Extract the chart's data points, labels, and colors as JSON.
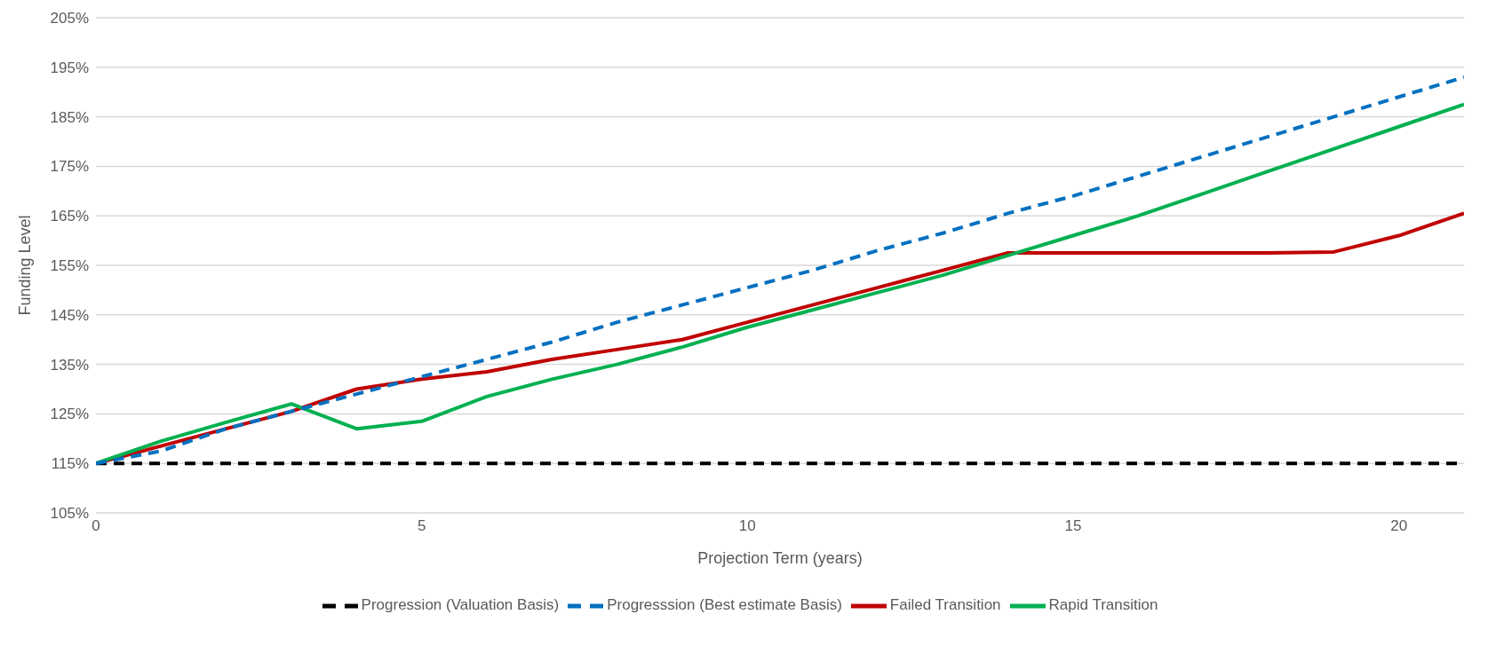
{
  "chart_data": {
    "type": "line",
    "xlabel": "Projection Term (years)",
    "ylabel": "Funding Level",
    "x": [
      0,
      1,
      2,
      3,
      4,
      5,
      6,
      7,
      8,
      9,
      10,
      11,
      12,
      13,
      14,
      15,
      16,
      17,
      18,
      19,
      20,
      21
    ],
    "xlim": [
      0,
      21
    ],
    "xticks": [
      0,
      5,
      10,
      15,
      20
    ],
    "ylim": [
      105,
      205
    ],
    "yticks": [
      {
        "value": 105,
        "label": "105%"
      },
      {
        "value": 115,
        "label": "115%"
      },
      {
        "value": 125,
        "label": "125%"
      },
      {
        "value": 135,
        "label": "135%"
      },
      {
        "value": 145,
        "label": "145%"
      },
      {
        "value": 155,
        "label": "155%"
      },
      {
        "value": 165,
        "label": "165%"
      },
      {
        "value": 175,
        "label": "175%"
      },
      {
        "value": 185,
        "label": "185%"
      },
      {
        "value": 195,
        "label": "195%"
      },
      {
        "value": 205,
        "label": "205%"
      }
    ],
    "grid": "y",
    "legend": "bottom",
    "marker": "none",
    "series": [
      {
        "name": "Progression (Valuation Basis)",
        "color": "#000000",
        "line_style": "dashed",
        "values": [
          115,
          115,
          115,
          115,
          115,
          115,
          115,
          115,
          115,
          115,
          115,
          115,
          115,
          115,
          115,
          115,
          115,
          115,
          115,
          115,
          115,
          115
        ]
      },
      {
        "name": "Progresssion (Best estimate Basis)",
        "color": "#0070c0",
        "line_style": "dashed",
        "values": [
          115,
          117.5,
          122,
          125.5,
          129,
          132.5,
          136,
          139.5,
          143.5,
          147,
          150.5,
          154,
          158,
          161.5,
          165.5,
          169,
          173,
          177,
          181,
          185,
          189,
          193
        ]
      },
      {
        "name": "Failed Transition",
        "color": "#c00000",
        "line_style": "solid",
        "values": [
          115,
          118.5,
          122,
          125.5,
          130,
          132,
          133.5,
          136,
          138,
          140,
          143.5,
          147,
          150.5,
          154,
          157.5,
          157.5,
          157.5,
          157.5,
          157.5,
          157.7,
          161,
          165.5
        ]
      },
      {
        "name": "Rapid Transition",
        "color": "#00b050",
        "line_style": "solid",
        "values": [
          115,
          119.5,
          123.3,
          127,
          122,
          123.5,
          128.5,
          132,
          135,
          138.5,
          142.5,
          146,
          149.5,
          153,
          157,
          161,
          165,
          169.5,
          174,
          178.5,
          183,
          187.5
        ]
      }
    ]
  }
}
